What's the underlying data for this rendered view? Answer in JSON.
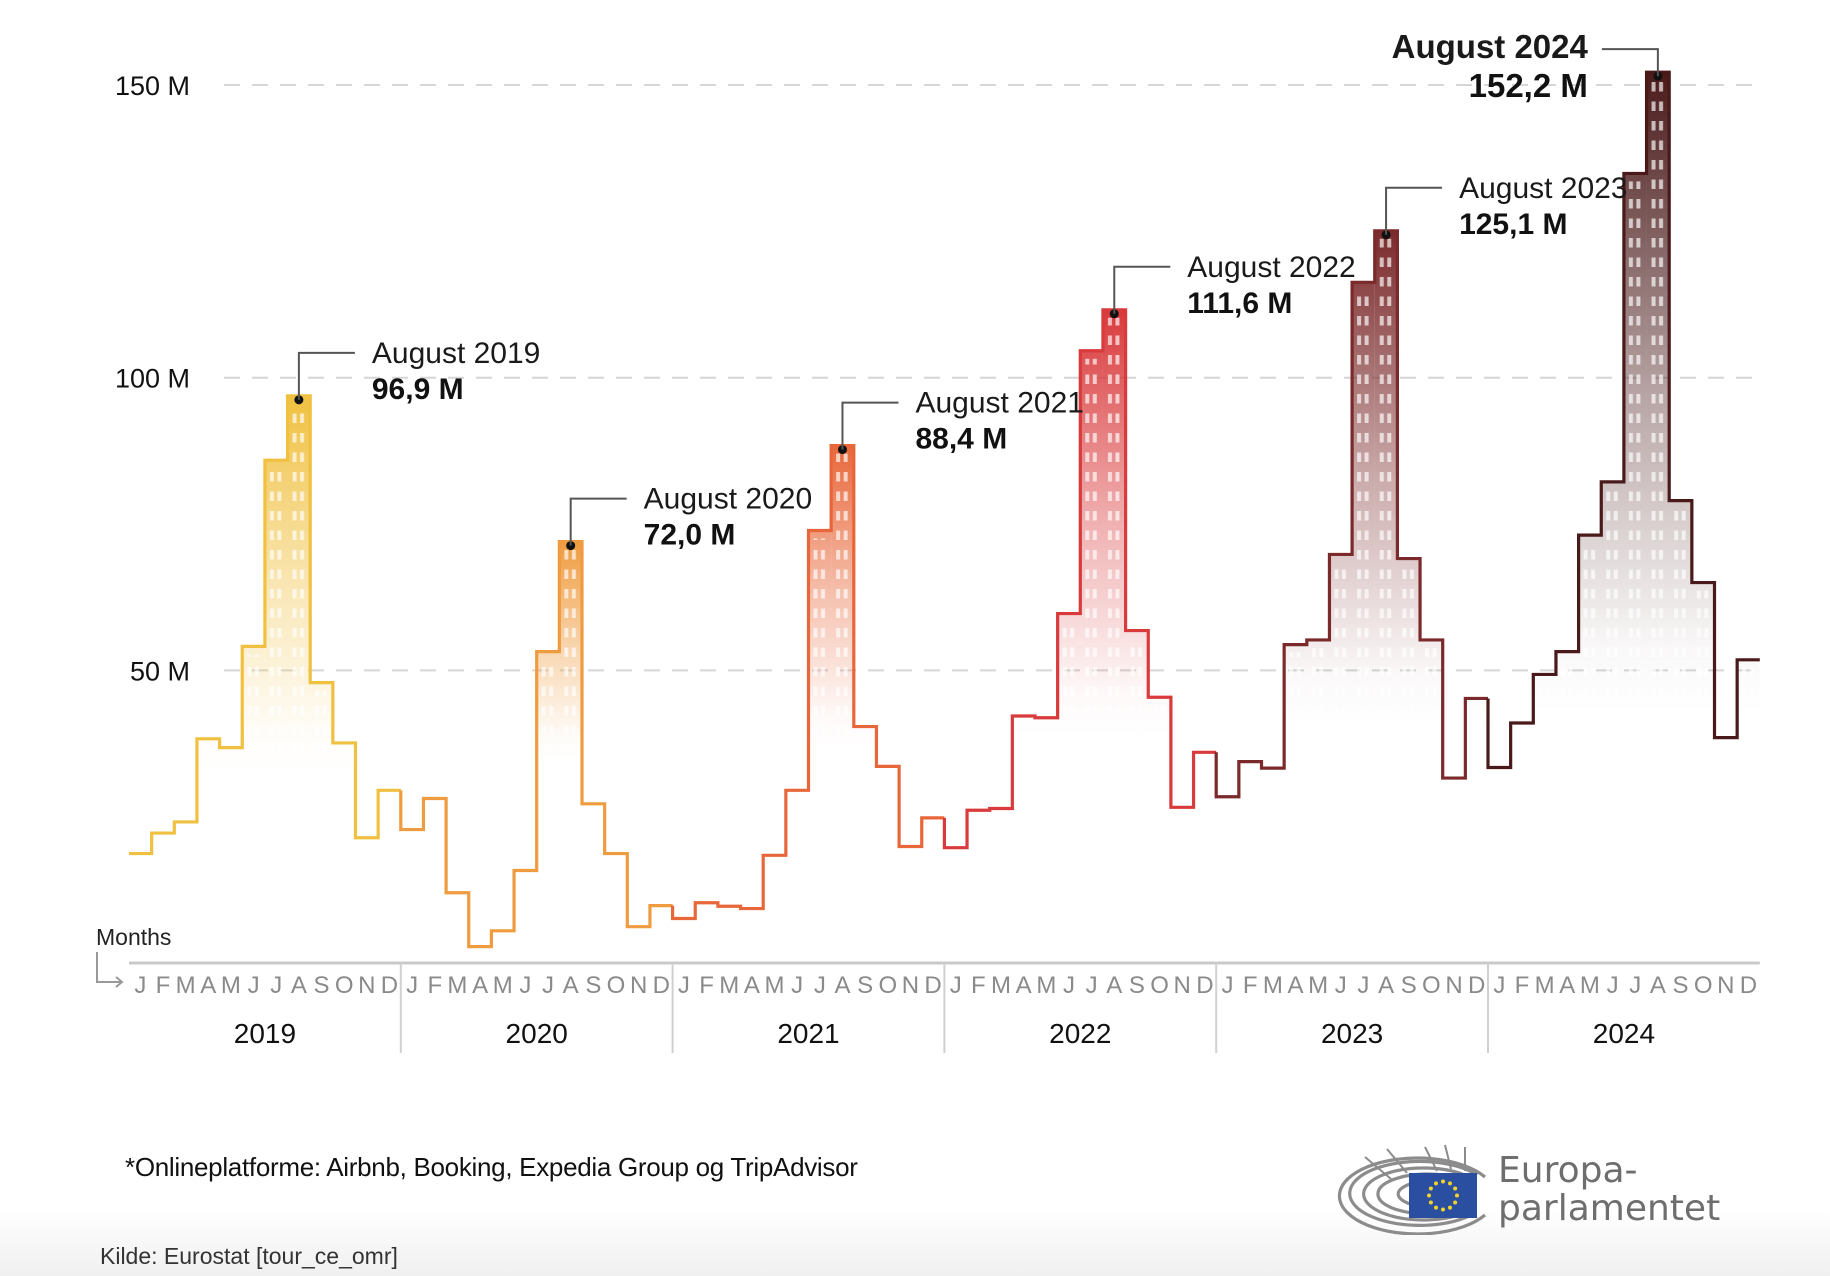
{
  "chart_data": {
    "type": "line",
    "subtype": "step",
    "title": "",
    "xlabel": "Months",
    "ylabel": "",
    "ylim": [
      0,
      150
    ],
    "yticks": [
      {
        "value": 50,
        "label": "50 M"
      },
      {
        "value": 100,
        "label": "100 M"
      },
      {
        "value": 150,
        "label": "150 M"
      }
    ],
    "grid": "horizontal-dashed",
    "month_labels": [
      "J",
      "F",
      "M",
      "A",
      "M",
      "J",
      "J",
      "A",
      "S",
      "O",
      "N",
      "D"
    ],
    "years": [
      "2019",
      "2020",
      "2021",
      "2022",
      "2023",
      "2024"
    ],
    "unit": "M",
    "series": [
      {
        "name": "2019",
        "color": "#f0c040",
        "values": [
          18.7,
          22.2,
          24.1,
          38.3,
          36.8,
          54.1,
          85.9,
          96.9,
          47.9,
          37.6,
          21.4,
          29.5
        ]
      },
      {
        "name": "2020",
        "color": "#ef9b3f",
        "values": [
          22.8,
          28.1,
          12.0,
          2.8,
          5.5,
          15.8,
          53.2,
          72.0,
          27.2,
          18.7,
          6.2,
          9.8
        ]
      },
      {
        "name": "2021",
        "color": "#e8673a",
        "values": [
          7.6,
          10.3,
          9.7,
          9.3,
          18.4,
          29.5,
          73.9,
          88.4,
          40.4,
          33.6,
          19.9,
          24.8
        ]
      },
      {
        "name": "2022",
        "color": "#d93a3c",
        "values": [
          19.7,
          26.1,
          26.4,
          42.2,
          41.9,
          59.7,
          104.6,
          111.6,
          56.8,
          45.4,
          26.6,
          36.0
        ]
      },
      {
        "name": "2023",
        "color": "#7b2a2b",
        "values": [
          28.4,
          34.4,
          33.3,
          54.4,
          55.2,
          69.8,
          116.3,
          125.1,
          69.1,
          55.2,
          31.6,
          45.2
        ]
      },
      {
        "name": "2024",
        "color": "#4a1a1a",
        "values": [
          33.4,
          41.0,
          49.3,
          53.2,
          73.1,
          82.2,
          134.9,
          152.2,
          79.0,
          65.0,
          38.5,
          51.8
        ]
      }
    ],
    "annotations": [
      {
        "series": "2019",
        "month": "A",
        "label": "August 2019",
        "value": "96,9 M"
      },
      {
        "series": "2020",
        "month": "A",
        "label": "August 2020",
        "value": "72,0 M"
      },
      {
        "series": "2021",
        "month": "A",
        "label": "August 2021",
        "value": "88,4 M"
      },
      {
        "series": "2022",
        "month": "A",
        "label": "August 2022",
        "value": "111,6 M"
      },
      {
        "series": "2023",
        "month": "A",
        "label": "August 2023",
        "value": "125,1 M"
      },
      {
        "series": "2024",
        "month": "A",
        "label": "August 2024",
        "value": "152,2 M",
        "emphasis": true,
        "side": "left"
      }
    ]
  },
  "footer": {
    "footnote": "*Onlineplatforme: Airbnb, Booking, Expedia Group og TripAdvisor",
    "source": "Kilde: Eurostat [tour_ce_omr]",
    "logo_line1": "Europa-",
    "logo_line2": "parlamentet",
    "flag_color": "#2a4fa0",
    "star_color": "#f2d32b"
  }
}
